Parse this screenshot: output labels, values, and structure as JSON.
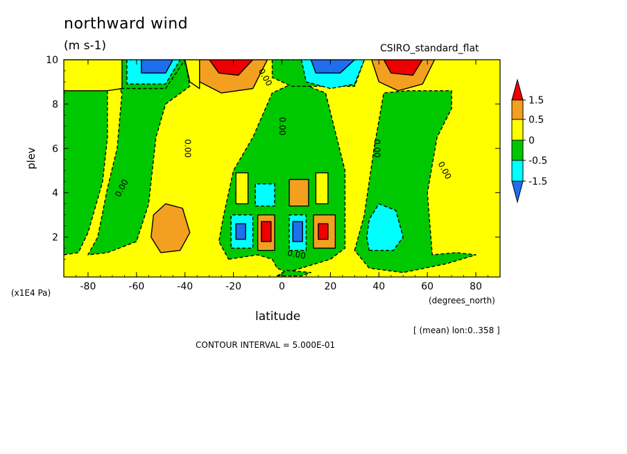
{
  "chart_data": {
    "type": "heatmap",
    "title": "northward wind",
    "units": "(m s-1)",
    "model": "CSIRO_standard_flat",
    "xlabel": "latitude",
    "ylabel": "plev",
    "y_unit": "(x1E4 Pa)",
    "x_unit": "(degrees_north)",
    "averaging": "[ (mean) lon:0..358 ]",
    "contour_interval": "CONTOUR INTERVAL = 5.000E-01",
    "xlim": [
      -90,
      90
    ],
    "ylim": [
      10,
      0.2
    ],
    "x_ticks": [
      {
        "value": -80,
        "label": "-80"
      },
      {
        "value": -60,
        "label": "-60"
      },
      {
        "value": -40,
        "label": "-40"
      },
      {
        "value": -20,
        "label": "-20"
      },
      {
        "value": 0,
        "label": "0"
      },
      {
        "value": 20,
        "label": "20"
      },
      {
        "value": 40,
        "label": "40"
      },
      {
        "value": 60,
        "label": "60"
      },
      {
        "value": 80,
        "label": "80"
      }
    ],
    "y_ticks": [
      {
        "value": 2,
        "label": "2"
      },
      {
        "value": 4,
        "label": "4"
      },
      {
        "value": 6,
        "label": "6"
      },
      {
        "value": 8,
        "label": "8"
      },
      {
        "value": 10,
        "label": "10"
      }
    ],
    "colorbar": {
      "labels": [
        "1.5",
        "0.5",
        "0",
        "-0.5",
        "-1.5"
      ],
      "colors": [
        "#ee0000",
        "#f3a020",
        "#ffff00",
        "#00c800",
        "#00ffff",
        "#1e6ef0"
      ]
    },
    "contour_labels": [
      {
        "lat": -66,
        "plev": 4.2,
        "text": "0.00",
        "rot": -62
      },
      {
        "lat": -39,
        "plev": 6.0,
        "text": "0.00",
        "rot": 90
      },
      {
        "lat": 0,
        "plev": 7.0,
        "text": "0.00",
        "rot": 90
      },
      {
        "lat": 39,
        "plev": 6.0,
        "text": "0.00",
        "rot": 90
      },
      {
        "lat": 67,
        "plev": 5.0,
        "text": "0.00",
        "rot": 62
      },
      {
        "lat": 6,
        "plev": 1.2,
        "text": "0.00",
        "rot": 10
      },
      {
        "lat": -7,
        "plev": 9.2,
        "text": "0.00",
        "rot": 60
      }
    ],
    "regions": [
      {
        "value": -0.2,
        "points": [
          [
            -75,
            10
          ],
          [
            -40,
            10
          ],
          [
            -38,
            8.8
          ],
          [
            -48,
            8
          ],
          [
            -52,
            6.5
          ],
          [
            -55,
            3.5
          ],
          [
            -60,
            1.8
          ],
          [
            -72,
            1.3
          ],
          [
            -80,
            1.2
          ],
          [
            -76,
            2
          ],
          [
            -72,
            4.2
          ],
          [
            -68,
            6
          ],
          [
            -66,
            8.5
          ]
        ]
      },
      {
        "value": -0.2,
        "points": [
          [
            -22,
            1.0
          ],
          [
            -10,
            1.2
          ],
          [
            -4,
            1.0
          ],
          [
            -2,
            0.6
          ],
          [
            2,
            0.4
          ],
          [
            8,
            0.6
          ],
          [
            14,
            0.8
          ],
          [
            20,
            1.0
          ],
          [
            26,
            1.5
          ],
          [
            26,
            5
          ],
          [
            18,
            8.5
          ],
          [
            6,
            9
          ],
          [
            -4,
            8.5
          ],
          [
            -12,
            6.5
          ],
          [
            -20,
            5
          ],
          [
            -24,
            3
          ],
          [
            -26,
            1.8
          ]
        ]
      },
      {
        "value": -0.2,
        "points": [
          [
            30,
            1.4
          ],
          [
            34,
            3
          ],
          [
            38,
            6
          ],
          [
            42,
            8.5
          ],
          [
            52,
            8.6
          ],
          [
            70,
            8.6
          ],
          [
            70,
            7.8
          ],
          [
            64,
            6.5
          ],
          [
            60,
            4
          ],
          [
            62,
            1.2
          ],
          [
            72,
            1.3
          ],
          [
            80,
            1.2
          ],
          [
            68,
            0.8
          ],
          [
            50,
            0.4
          ],
          [
            36,
            0.6
          ]
        ]
      },
      {
        "value": -0.2,
        "points": [
          [
            -90,
            1.2
          ],
          [
            -84,
            1.3
          ],
          [
            -80,
            2.2
          ],
          [
            -74,
            4.5
          ],
          [
            -72,
            6.5
          ],
          [
            -72,
            8.6
          ],
          [
            -90,
            8.6
          ]
        ]
      },
      {
        "value": -0.2,
        "points": [
          [
            -66,
            10
          ],
          [
            -66,
            8.7
          ],
          [
            -58,
            8.7
          ],
          [
            -48,
            8.7
          ],
          [
            -40,
            10
          ]
        ]
      },
      {
        "value": -0.2,
        "points": [
          [
            -4,
            10
          ],
          [
            -4,
            9.2
          ],
          [
            4,
            8.8
          ],
          [
            12,
            8.8
          ],
          [
            20,
            8.8
          ],
          [
            30,
            8.8
          ],
          [
            34,
            10
          ]
        ]
      },
      {
        "value": -0.2,
        "points": [
          [
            -2,
            0.25
          ],
          [
            8,
            0.25
          ],
          [
            12,
            0.4
          ],
          [
            2,
            0.5
          ]
        ]
      },
      {
        "value": 0.6,
        "points": [
          [
            -50,
            1.3
          ],
          [
            -42,
            1.4
          ],
          [
            -38,
            2.2
          ],
          [
            -41,
            3.3
          ],
          [
            -48,
            3.5
          ],
          [
            -53,
            3
          ],
          [
            -54,
            2
          ]
        ]
      },
      {
        "value": -0.6,
        "points": [
          [
            36,
            1.4
          ],
          [
            46,
            1.4
          ],
          [
            50,
            2
          ],
          [
            47,
            3.2
          ],
          [
            40,
            3.5
          ],
          [
            36,
            2.8
          ],
          [
            35,
            2
          ]
        ]
      },
      {
        "value": 0.6,
        "points": [
          [
            -10,
            1.4
          ],
          [
            -3,
            1.4
          ],
          [
            -3,
            3.0
          ],
          [
            -10,
            3.0
          ]
        ]
      },
      {
        "value": 1.6,
        "points": [
          [
            -8.5,
            1.8
          ],
          [
            -4.5,
            1.8
          ],
          [
            -4.5,
            2.7
          ],
          [
            -8.5,
            2.7
          ]
        ]
      },
      {
        "value": -0.6,
        "points": [
          [
            -21,
            1.5
          ],
          [
            -12,
            1.5
          ],
          [
            -12,
            3.0
          ],
          [
            -21,
            3.0
          ]
        ]
      },
      {
        "value": -1.6,
        "points": [
          [
            -19,
            1.9
          ],
          [
            -15,
            1.9
          ],
          [
            -15,
            2.6
          ],
          [
            -19,
            2.6
          ]
        ]
      },
      {
        "value": -0.6,
        "points": [
          [
            3,
            1.4
          ],
          [
            10,
            1.4
          ],
          [
            10,
            3.0
          ],
          [
            3,
            3.0
          ]
        ]
      },
      {
        "value": -1.6,
        "points": [
          [
            4.5,
            1.8
          ],
          [
            8.5,
            1.8
          ],
          [
            8.5,
            2.7
          ],
          [
            4.5,
            2.7
          ]
        ]
      },
      {
        "value": 0.6,
        "points": [
          [
            13,
            1.5
          ],
          [
            22,
            1.5
          ],
          [
            22,
            3.0
          ],
          [
            13,
            3.0
          ]
        ]
      },
      {
        "value": 1.6,
        "points": [
          [
            15,
            1.9
          ],
          [
            19,
            1.9
          ],
          [
            19,
            2.6
          ],
          [
            15,
            2.6
          ]
        ]
      },
      {
        "value": -0.6,
        "points": [
          [
            -11,
            3.4
          ],
          [
            -3,
            3.4
          ],
          [
            -3,
            4.4
          ],
          [
            -11,
            4.4
          ]
        ]
      },
      {
        "value": 0.6,
        "points": [
          [
            3,
            3.4
          ],
          [
            11,
            3.4
          ],
          [
            11,
            4.6
          ],
          [
            3,
            4.6
          ]
        ]
      },
      {
        "value": 0.2,
        "points": [
          [
            -19,
            3.5
          ],
          [
            -14,
            3.5
          ],
          [
            -14,
            4.9
          ],
          [
            -19,
            4.9
          ]
        ]
      },
      {
        "value": 0.2,
        "points": [
          [
            14,
            3.5
          ],
          [
            19,
            3.5
          ],
          [
            19,
            4.9
          ],
          [
            14,
            4.9
          ]
        ]
      },
      {
        "value": -0.6,
        "points": [
          [
            -64,
            10
          ],
          [
            -64,
            8.9
          ],
          [
            -48,
            8.9
          ],
          [
            -42,
            10
          ]
        ]
      },
      {
        "value": -1.6,
        "points": [
          [
            -58,
            10
          ],
          [
            -58,
            9.4
          ],
          [
            -48,
            9.4
          ],
          [
            -45,
            10
          ]
        ]
      },
      {
        "value": 0.6,
        "points": [
          [
            -37,
            10
          ],
          [
            -34,
            9
          ],
          [
            -25,
            8.5
          ],
          [
            -12,
            8.7
          ],
          [
            -6,
            10
          ]
        ]
      },
      {
        "value": 1.6,
        "points": [
          [
            -30,
            10
          ],
          [
            -26,
            9.4
          ],
          [
            -18,
            9.3
          ],
          [
            -12,
            10
          ]
        ]
      },
      {
        "value": 0.2,
        "points": [
          [
            -92,
            8.6
          ],
          [
            -72,
            8.6
          ],
          [
            -66,
            8.7
          ],
          [
            -66,
            10
          ],
          [
            -92,
            10
          ]
        ]
      },
      {
        "value": 0.2,
        "points": [
          [
            -40,
            10
          ],
          [
            -38,
            9
          ],
          [
            -34,
            8.7
          ],
          [
            -34,
            10
          ]
        ]
      },
      {
        "value": -0.6,
        "points": [
          [
            8,
            10
          ],
          [
            10,
            9
          ],
          [
            20,
            8.7
          ],
          [
            30,
            8.9
          ],
          [
            34,
            10
          ]
        ]
      },
      {
        "value": -1.6,
        "points": [
          [
            12,
            10
          ],
          [
            14,
            9.4
          ],
          [
            24,
            9.4
          ],
          [
            30,
            10
          ]
        ]
      },
      {
        "value": 0.6,
        "points": [
          [
            37,
            10
          ],
          [
            40,
            9
          ],
          [
            48,
            8.6
          ],
          [
            58,
            8.9
          ],
          [
            63,
            10
          ]
        ]
      },
      {
        "value": 1.6,
        "points": [
          [
            42,
            10
          ],
          [
            45,
            9.4
          ],
          [
            54,
            9.3
          ],
          [
            58,
            10
          ]
        ]
      }
    ]
  }
}
